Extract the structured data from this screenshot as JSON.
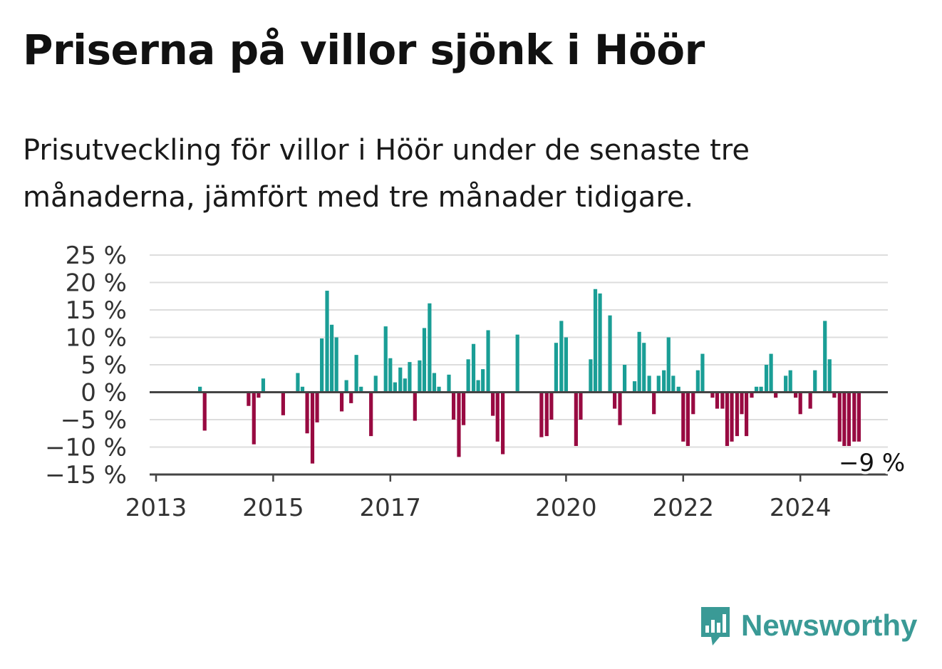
{
  "header": {
    "title": "Priserna på villor sjönk i Höör",
    "subtitle": "Prisutveckling för villor i Höör under de senaste tre månaderna, jämfört med tre månader tidigare."
  },
  "brand": {
    "name": "Newsworthy",
    "icon": "newsworthy-logo-icon"
  },
  "colors": {
    "positive": "#1a9e96",
    "negative": "#980a41",
    "grid": "#dddddd",
    "axis": "#444444"
  },
  "chart_data": {
    "type": "bar",
    "xlabel": "",
    "ylabel": "",
    "ylim": [
      -15,
      25
    ],
    "y_ticks": [
      25,
      20,
      15,
      10,
      5,
      0,
      -5,
      -10,
      -15
    ],
    "y_tick_labels": [
      "25 %",
      "20 %",
      "15 %",
      "10 %",
      "5 %",
      "0 %",
      "−5 %",
      "−10 %",
      "−15 %"
    ],
    "x_ticks": [
      2013,
      2015,
      2017,
      2020,
      2022,
      2024
    ],
    "x_tick_labels": [
      "2013",
      "2015",
      "2017",
      "2020",
      "2022",
      "2024"
    ],
    "grid": true,
    "annotation": {
      "x": 2025.1,
      "y": -9,
      "text": "−9 %"
    },
    "x": [
      2013.75,
      2013.83,
      2014.58,
      2014.67,
      2014.75,
      2014.83,
      2015.17,
      2015.42,
      2015.5,
      2015.58,
      2015.67,
      2015.75,
      2015.83,
      2015.92,
      2016.0,
      2016.08,
      2016.17,
      2016.25,
      2016.33,
      2016.42,
      2016.5,
      2016.67,
      2016.75,
      2016.92,
      2017.0,
      2017.08,
      2017.17,
      2017.25,
      2017.33,
      2017.42,
      2017.5,
      2017.58,
      2017.67,
      2017.75,
      2017.83,
      2018.0,
      2018.08,
      2018.17,
      2018.25,
      2018.33,
      2018.42,
      2018.5,
      2018.58,
      2018.67,
      2018.75,
      2018.83,
      2018.92,
      2019.17,
      2019.58,
      2019.67,
      2019.75,
      2019.83,
      2019.92,
      2020.0,
      2020.17,
      2020.25,
      2020.42,
      2020.5,
      2020.58,
      2020.75,
      2020.83,
      2020.92,
      2021.0,
      2021.17,
      2021.25,
      2021.33,
      2021.42,
      2021.5,
      2021.58,
      2021.67,
      2021.75,
      2021.83,
      2021.92,
      2022.0,
      2022.08,
      2022.17,
      2022.25,
      2022.33,
      2022.5,
      2022.58,
      2022.67,
      2022.75,
      2022.83,
      2022.92,
      2023.0,
      2023.08,
      2023.17,
      2023.25,
      2023.33,
      2023.42,
      2023.5,
      2023.58,
      2023.75,
      2023.83,
      2023.92,
      2024.0,
      2024.17,
      2024.25,
      2024.42,
      2024.5,
      2024.58,
      2024.67,
      2024.75,
      2024.83,
      2024.92,
      2025.0
    ],
    "values": [
      1,
      -7,
      -2.5,
      -9.5,
      -1,
      2.5,
      -4.2,
      3.5,
      1,
      -7.5,
      -13,
      -5.5,
      9.8,
      18.5,
      12.3,
      10,
      -3.5,
      2.2,
      -2,
      6.8,
      1,
      -8,
      3,
      12,
      6.2,
      1.8,
      4.5,
      2.5,
      5.5,
      -5.2,
      5.8,
      11.7,
      16.2,
      3.5,
      1,
      3.2,
      -5,
      -11.8,
      -6,
      6,
      8.8,
      2.2,
      4.2,
      11.3,
      -4.3,
      -9,
      -11.3,
      10.5,
      -8.2,
      -8,
      -5,
      9,
      13,
      10,
      -9.8,
      -5,
      6,
      18.8,
      18,
      14,
      -3,
      -6,
      5,
      2,
      11,
      9,
      3,
      -4,
      3,
      4,
      10,
      3,
      1,
      -9,
      -9.8,
      -4,
      4,
      7,
      -1,
      -3,
      -3,
      -9.8,
      -9,
      -8,
      -4,
      -8,
      -1,
      1,
      1,
      5,
      7,
      -1,
      3,
      4,
      -1,
      -4,
      -3,
      4,
      13,
      6,
      -1,
      -9,
      -9.8,
      -9.8,
      -9,
      -9
    ]
  }
}
